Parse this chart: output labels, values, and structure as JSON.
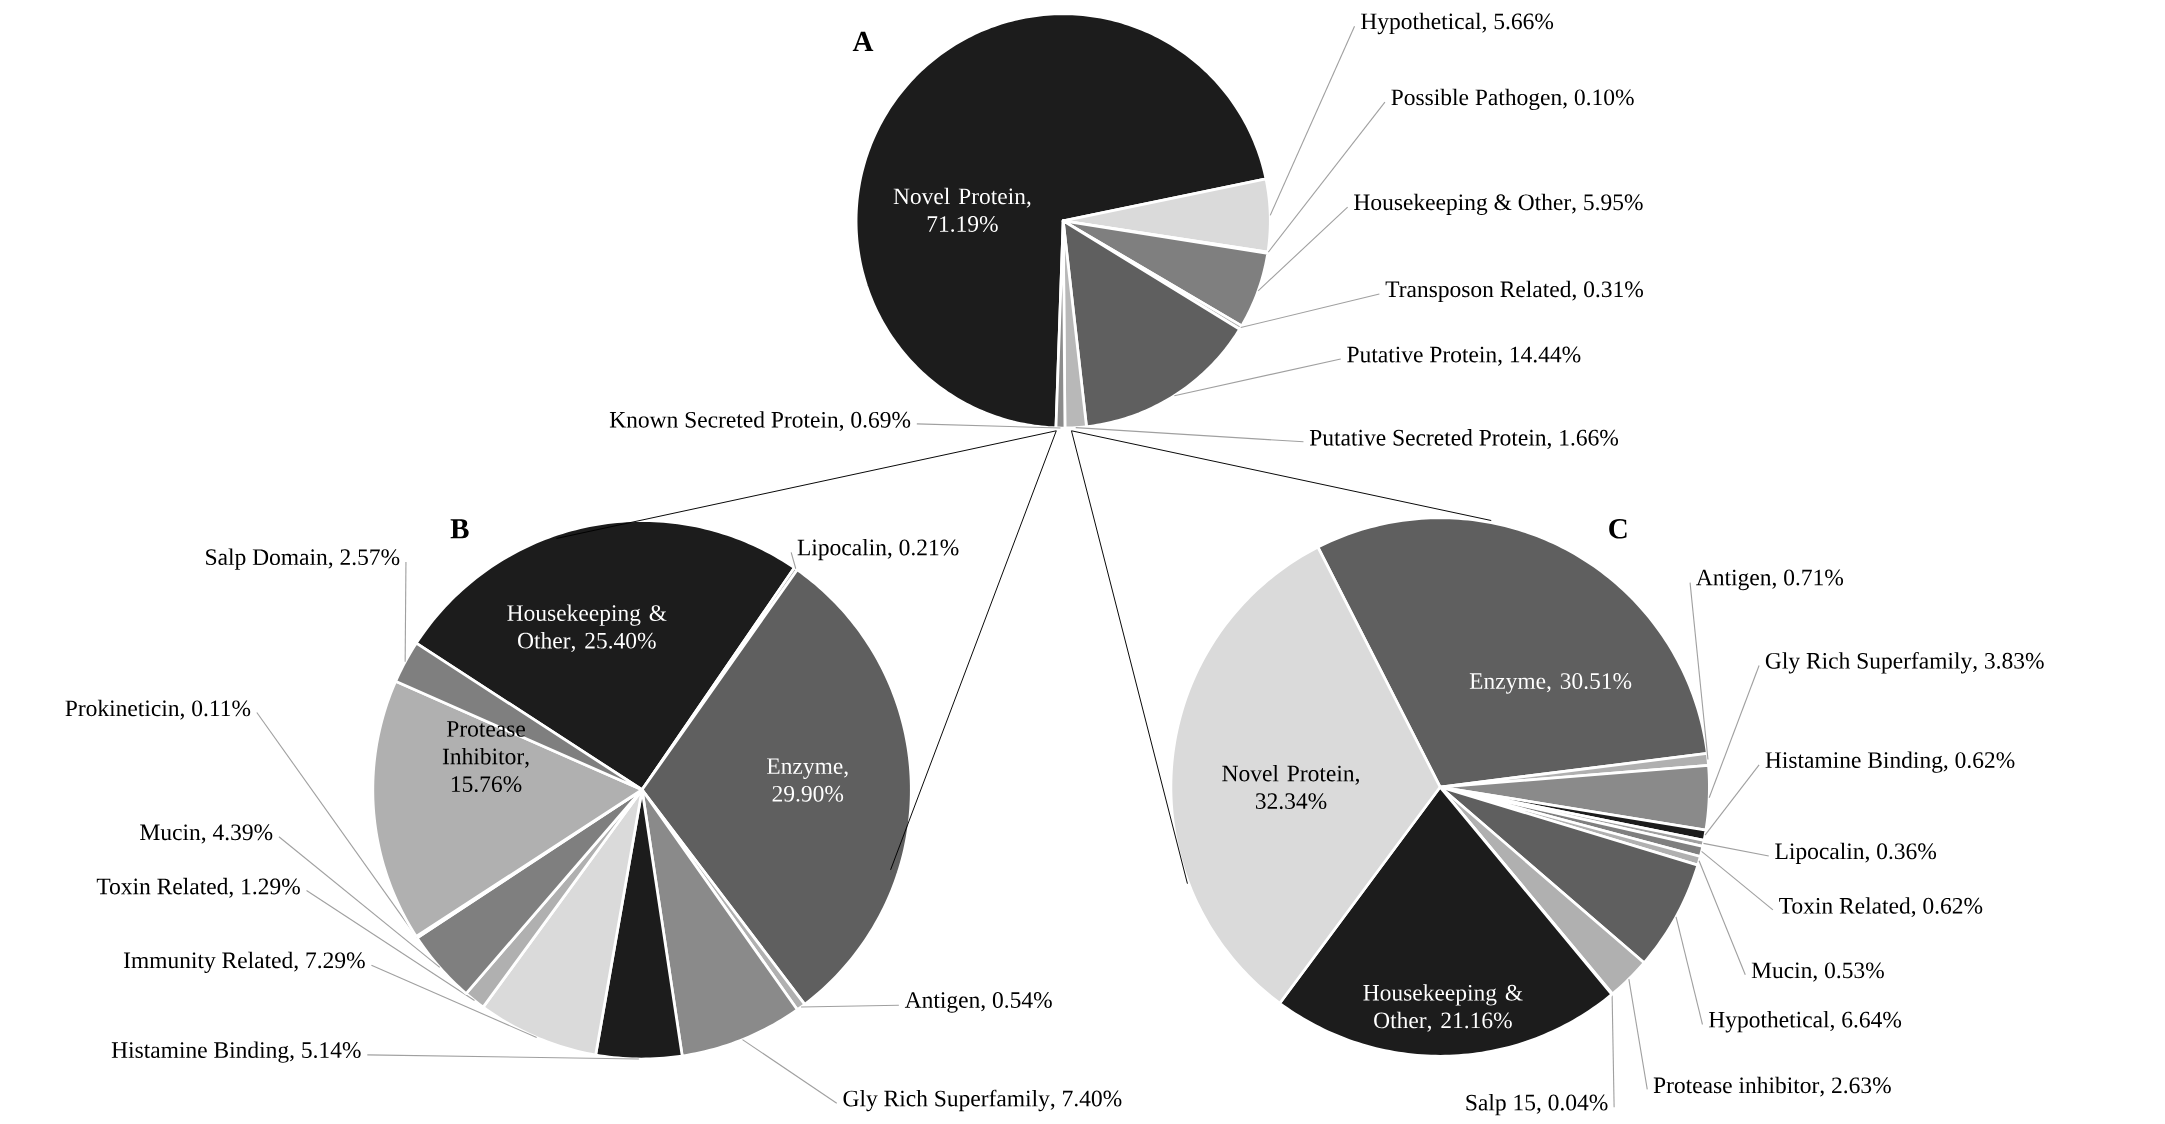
{
  "chart_data": [
    {
      "type": "pie",
      "title": "A",
      "data_labels": true,
      "categories": [
        "Novel Protein",
        "Hypothetical",
        "Possible Pathogen",
        "Housekeeping & Other",
        "Transposon Related",
        "Putative Protein",
        "Putative Secreted Protein",
        "Known Secreted Protein"
      ],
      "values": [
        71.19,
        5.66,
        0.1,
        5.95,
        0.31,
        14.44,
        1.66,
        0.69
      ],
      "value_labels": [
        ", 71.19%",
        ", 5.66%",
        ", 0.10%",
        ", 5.95%",
        ", 0.31%",
        ", 14.44%",
        ", 1.66%",
        ", 0.69%"
      ],
      "colors": [
        "#1c1c1c",
        "#dadada",
        "#a0a0a0",
        "#7f7f7f",
        "#b0b0b0",
        "#5f5f5f",
        "#b8b8b8",
        "#8c8c8c"
      ]
    },
    {
      "type": "pie",
      "title": "B",
      "data_labels": true,
      "categories": [
        "Housekeeping & Other",
        "Lipocalin",
        "Enzyme",
        "Antigen",
        "Gly Rich Superfamily",
        "Histamine Binding",
        "Immunity Related",
        "Toxin Related",
        "Mucin",
        "Prokineticin",
        "Protease Inhibitor",
        "Salp Domain"
      ],
      "values": [
        25.4,
        0.21,
        29.9,
        0.54,
        7.4,
        5.14,
        7.29,
        1.29,
        4.39,
        0.11,
        15.76,
        2.57
      ],
      "value_labels": [
        ", 25.40%",
        ", 0.21%",
        ", 29.90%",
        ", 0.54%",
        ", 7.40%",
        ", 5.14%",
        ", 7.29%",
        ", 1.29%",
        ", 4.39%",
        ", 0.11%",
        ", 15.76%",
        ", 2.57%"
      ],
      "colors": [
        "#1c1c1c",
        "#a0a0a0",
        "#5f5f5f",
        "#b0b0b0",
        "#8a8a8a",
        "#1c1c1c",
        "#dadada",
        "#b0b0b0",
        "#7f7f7f",
        "#a0a0a0",
        "#b0b0b0",
        "#7f7f7f"
      ]
    },
    {
      "type": "pie",
      "title": "C",
      "data_labels": true,
      "categories": [
        "Enzyme",
        "Antigen",
        "Gly Rich Superfamily",
        "Histamine Binding",
        "Lipocalin",
        "Toxin Related",
        "Mucin",
        "Hypothetical",
        "Protease inhibitor",
        "Salp 15",
        "Housekeeping & Other",
        "Novel Protein"
      ],
      "values": [
        30.51,
        0.71,
        3.83,
        0.62,
        0.36,
        0.62,
        0.53,
        6.64,
        2.63,
        0.04,
        21.16,
        32.34
      ],
      "value_labels": [
        ", 30.51%",
        ", 0.71%",
        ", 3.83%",
        ", 0.62%",
        ", 0.36%",
        ", 0.62%",
        ", 0.53%",
        ", 6.64%",
        ", 2.63%",
        ", 0.04%",
        ", 21.16%",
        ", 32.34%"
      ],
      "colors": [
        "#5f5f5f",
        "#b0b0b0",
        "#8a8a8a",
        "#1c1c1c",
        "#a0a0a0",
        "#7f7f7f",
        "#b0b0b0",
        "#5f5f5f",
        "#b0b0b0",
        "#7f7f7f",
        "#1c1c1c",
        "#dadada"
      ]
    }
  ]
}
